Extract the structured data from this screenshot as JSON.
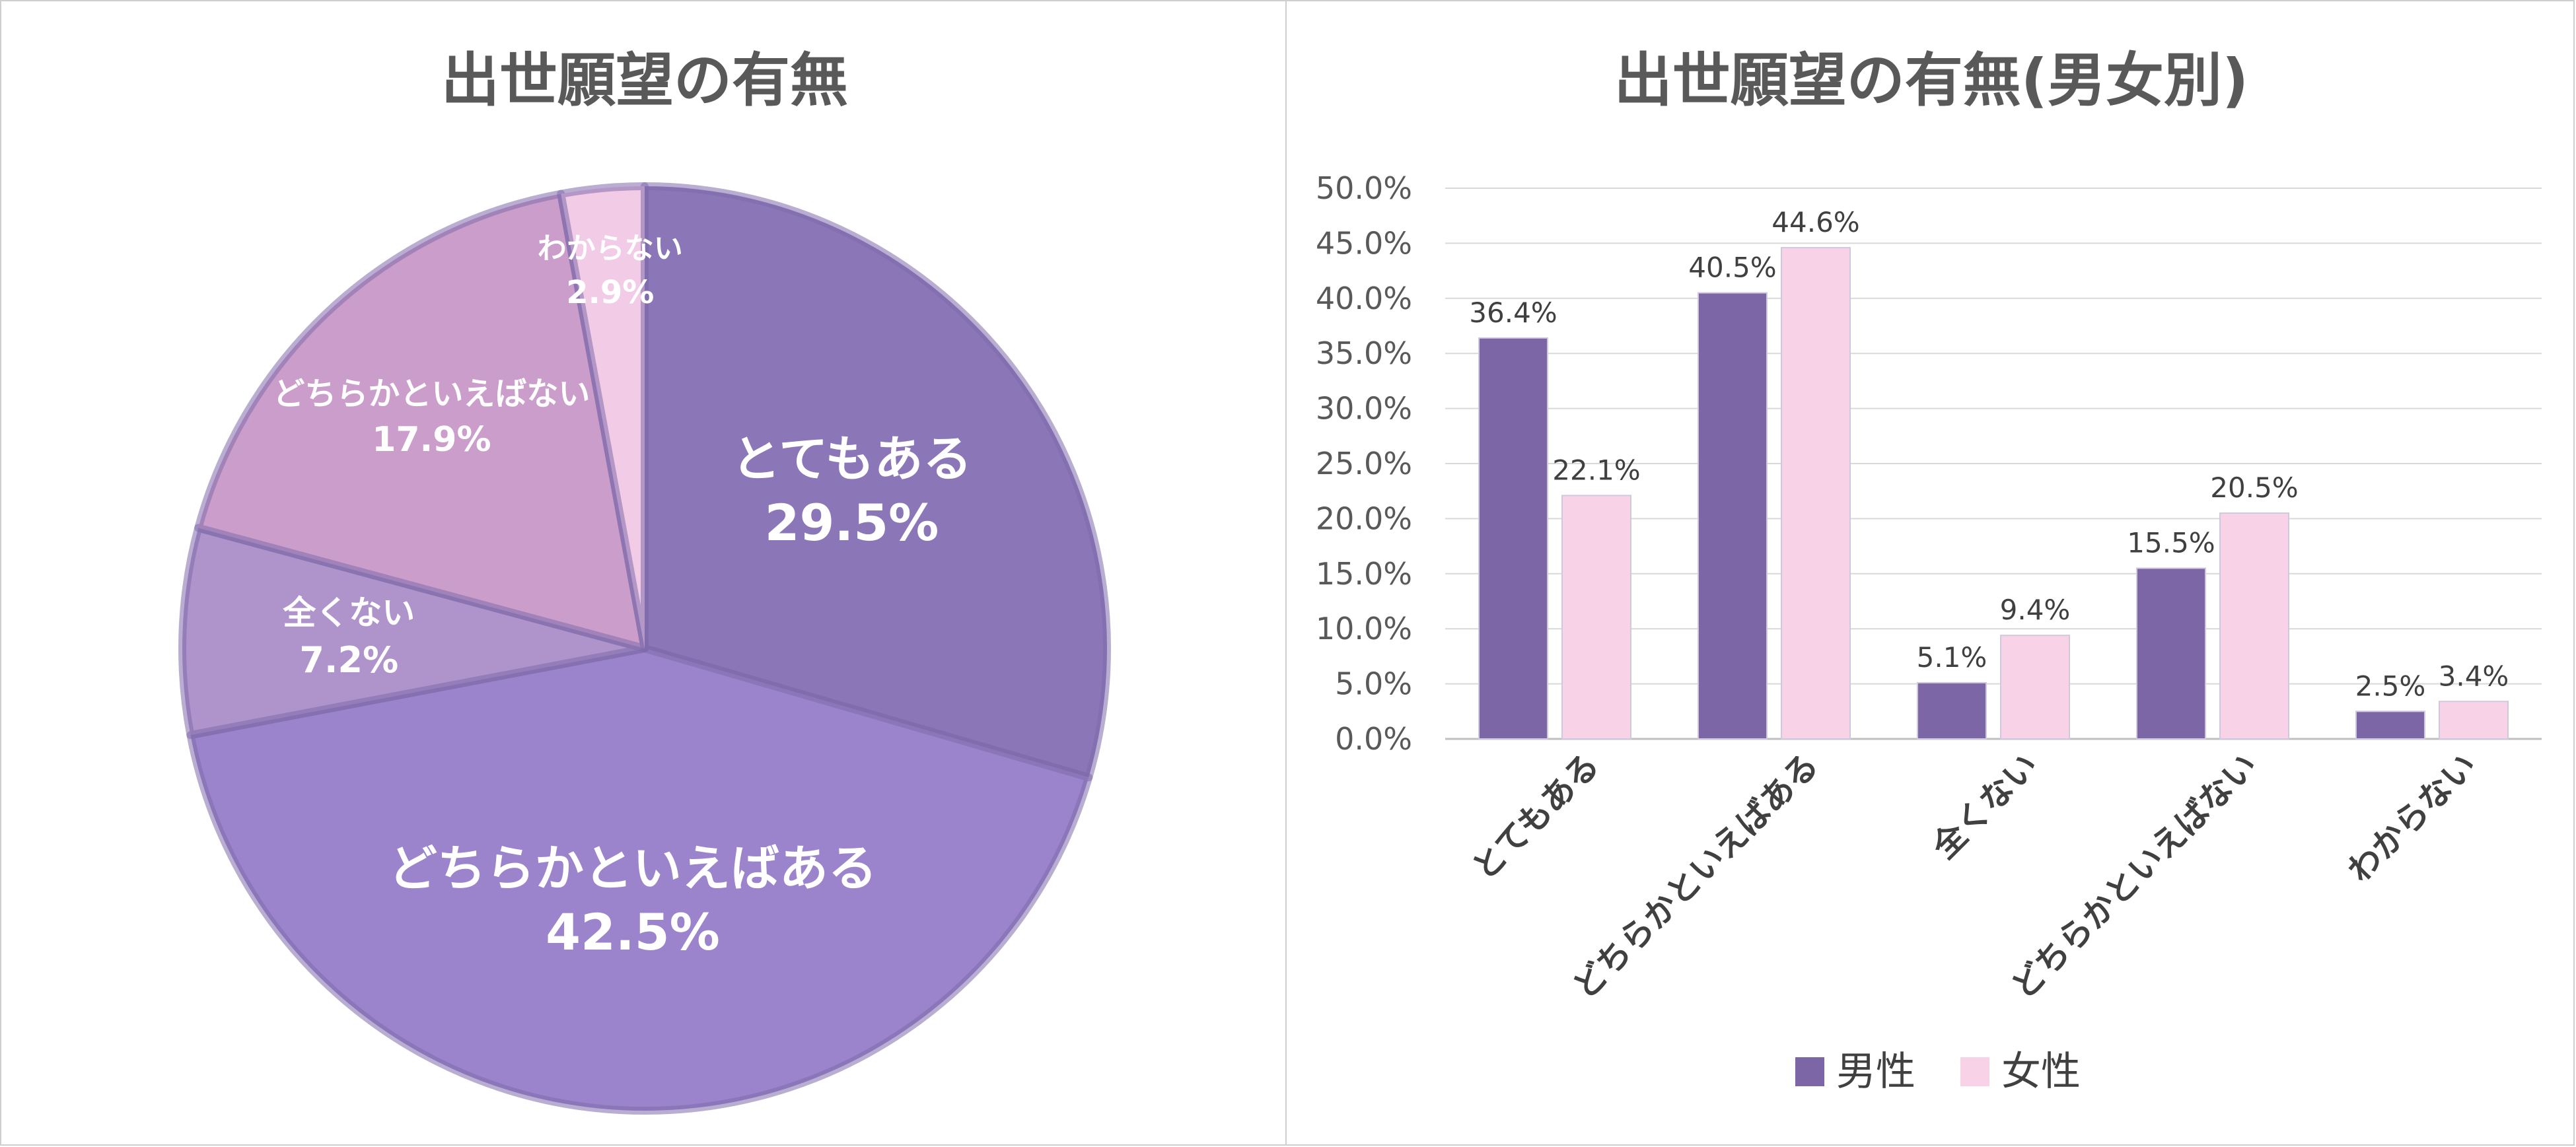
{
  "chart_data": [
    {
      "type": "pie",
      "title": "出世願望の有無",
      "slices": [
        {
          "label": "とてもある",
          "value": 29.5,
          "value_label": "29.5%",
          "color": "#8B76B8"
        },
        {
          "label": "どちらかといえばある",
          "value": 42.5,
          "value_label": "42.5%",
          "color": "#9B84CC"
        },
        {
          "label": "全くない",
          "value": 7.2,
          "value_label": "7.2%",
          "color": "#AF93CB"
        },
        {
          "label": "どちらかといえばない",
          "value": 17.9,
          "value_label": "17.9%",
          "color": "#CB9DCB"
        },
        {
          "label": "わからない",
          "value": 2.9,
          "value_label": "2.9%",
          "color": "#F2CCE6"
        }
      ]
    },
    {
      "type": "bar",
      "title": "出世願望の有無(男女別)",
      "categories": [
        "とてもある",
        "どちらかといえばある",
        "全くない",
        "どちらかといえばない",
        "わからない"
      ],
      "series": [
        {
          "name": "男性",
          "values": [
            36.4,
            40.5,
            5.1,
            15.5,
            2.5
          ],
          "labels": [
            "36.4%",
            "40.5%",
            "5.1%",
            "15.5%",
            "2.5%"
          ],
          "color": "#7C66A6"
        },
        {
          "name": "女性",
          "values": [
            22.1,
            44.6,
            9.4,
            20.5,
            3.4
          ],
          "labels": [
            "22.1%",
            "44.6%",
            "9.4%",
            "20.5%",
            "3.4%"
          ],
          "color": "#F8D3E8"
        }
      ],
      "ylim": [
        0,
        50
      ],
      "yticks": [
        "0.0%",
        "5.0%",
        "10.0%",
        "15.0%",
        "20.0%",
        "25.0%",
        "30.0%",
        "35.0%",
        "40.0%",
        "45.0%",
        "50.0%"
      ],
      "grid": true,
      "legend": "bottom"
    }
  ]
}
